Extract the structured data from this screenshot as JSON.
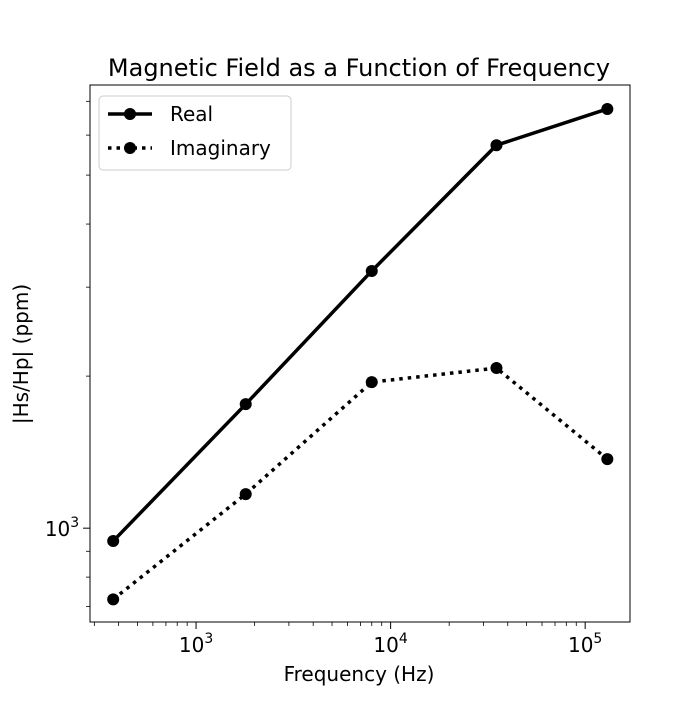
{
  "chart_data": {
    "type": "line",
    "title": "Magnetic Field as a Function of Frequency",
    "xlabel": "Frequency (Hz)",
    "ylabel": "|Hs/Hp| (ppm)",
    "xscale": "log",
    "yscale": "log",
    "xlim": [
      285,
      170000
    ],
    "ylim": [
      652,
      7540
    ],
    "x_ticks": [
      {
        "value": 1000,
        "label": "10",
        "exp": "3"
      },
      {
        "value": 10000,
        "label": "10",
        "exp": "4"
      },
      {
        "value": 100000,
        "label": "10",
        "exp": "5"
      }
    ],
    "y_ticks": [
      {
        "value": 1000,
        "label": "10",
        "exp": "3"
      }
    ],
    "grid": false,
    "legend_position": "top-left",
    "x": [
      375,
      1800,
      8000,
      35000,
      130000
    ],
    "series": [
      {
        "name": "Real",
        "style": "solid",
        "marker": "circle",
        "color": "#000000",
        "values": [
          943,
          1760,
          3230,
          5730,
          6760
        ]
      },
      {
        "name": "Imaginary",
        "style": "dotted",
        "marker": "circle",
        "color": "#000000",
        "values": [
          723,
          1168,
          1946,
          2075,
          1370
        ]
      }
    ]
  }
}
